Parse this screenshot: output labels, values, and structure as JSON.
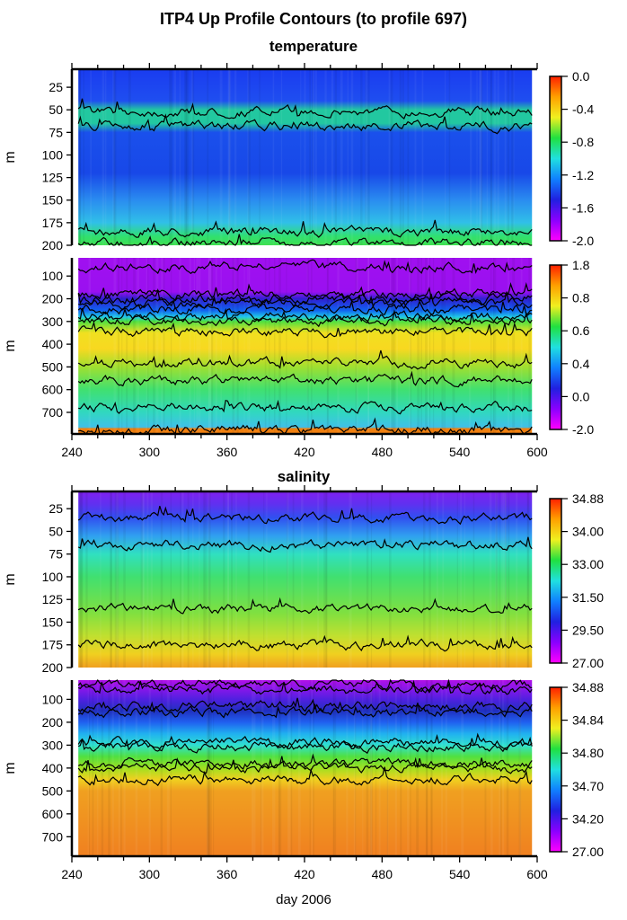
{
  "chart_data": [
    {
      "type": "heatmap",
      "title": "ITP4 Up Profile Contours (to profile 697)",
      "subtitle": "temperature",
      "ylabel": "m",
      "xlim": [
        240,
        600
      ],
      "ylim": [
        5,
        200
      ],
      "x_ticks": [
        240,
        300,
        360,
        420,
        480,
        540,
        600
      ],
      "y_ticks": [
        25,
        50,
        75,
        100,
        125,
        150,
        175,
        200
      ],
      "colorbar_ticks": [
        "0.0",
        "-0.4",
        "-0.8",
        "-1.2",
        "-1.6",
        "-2.0"
      ],
      "colorbar_range": [
        -2.0,
        0.0
      ],
      "contour_depths_approx": [
        52,
        68,
        185,
        197
      ],
      "color_by_depth": [
        [
          5,
          "#1a3cf0"
        ],
        [
          40,
          "#1f4ef0"
        ],
        [
          50,
          "#22c8a0"
        ],
        [
          65,
          "#22c8a0"
        ],
        [
          75,
          "#1a50ec"
        ],
        [
          120,
          "#1848e8"
        ],
        [
          150,
          "#2a8cf0"
        ],
        [
          175,
          "#30c0e8"
        ],
        [
          190,
          "#30e070"
        ],
        [
          200,
          "#40e050"
        ]
      ]
    },
    {
      "type": "heatmap",
      "ylabel": "m",
      "xlim": [
        240,
        600
      ],
      "ylim": [
        20,
        795
      ],
      "x_ticks": [
        240,
        300,
        360,
        420,
        480,
        540,
        600
      ],
      "x_tick_labels": [
        "240",
        "300",
        "360",
        "420",
        "480",
        "540",
        "600"
      ],
      "y_ticks": [
        100,
        200,
        300,
        400,
        500,
        600,
        700
      ],
      "colorbar_ticks": [
        "1.8",
        "0.8",
        "0.6",
        "0.4",
        "0.0",
        "-2.0"
      ],
      "colorbar_range": [
        -2.0,
        1.8
      ],
      "contour_depths_approx": [
        60,
        180,
        200,
        220,
        245,
        280,
        295,
        345,
        485,
        560,
        680,
        775
      ],
      "color_by_depth": [
        [
          20,
          "#a010f0"
        ],
        [
          170,
          "#9a10f0"
        ],
        [
          200,
          "#3020d0"
        ],
        [
          250,
          "#1060f0"
        ],
        [
          280,
          "#20c8e8"
        ],
        [
          300,
          "#50e040"
        ],
        [
          350,
          "#f0e020"
        ],
        [
          420,
          "#f8d820"
        ],
        [
          500,
          "#a0e030"
        ],
        [
          600,
          "#40e070"
        ],
        [
          700,
          "#30d8c0"
        ],
        [
          765,
          "#40c0e8"
        ],
        [
          772,
          "#f08010"
        ],
        [
          795,
          "#f08010"
        ]
      ]
    },
    {
      "type": "heatmap",
      "subtitle": "salinity",
      "ylabel": "m",
      "xlim": [
        240,
        600
      ],
      "ylim": [
        6,
        200
      ],
      "x_ticks": [
        240,
        300,
        360,
        420,
        480,
        540,
        600
      ],
      "y_ticks": [
        25,
        50,
        75,
        100,
        125,
        150,
        175,
        200
      ],
      "colorbar_ticks": [
        "34.88",
        "34.00",
        "33.00",
        "31.50",
        "29.50",
        "27.00"
      ],
      "colorbar_range": [
        27.0,
        34.88
      ],
      "contour_depths_approx": [
        35,
        65,
        135,
        175
      ],
      "color_by_depth": [
        [
          6,
          "#8020f0"
        ],
        [
          20,
          "#6030f0"
        ],
        [
          35,
          "#3050f0"
        ],
        [
          55,
          "#30a0f0"
        ],
        [
          75,
          "#30e0c0"
        ],
        [
          100,
          "#40e070"
        ],
        [
          140,
          "#80e040"
        ],
        [
          165,
          "#c0e030"
        ],
        [
          185,
          "#f0d020"
        ],
        [
          200,
          "#f0a020"
        ]
      ]
    },
    {
      "type": "heatmap",
      "ylabel": "m",
      "xlabel": "day 2006",
      "xlim": [
        240,
        600
      ],
      "ylim": [
        16,
        785
      ],
      "x_ticks": [
        240,
        300,
        360,
        420,
        480,
        540,
        600
      ],
      "x_tick_labels": [
        "240",
        "300",
        "360",
        "420",
        "480",
        "540",
        "600"
      ],
      "y_ticks": [
        100,
        200,
        300,
        400,
        500,
        600,
        700
      ],
      "colorbar_ticks": [
        "34.88",
        "34.84",
        "34.80",
        "34.70",
        "34.20",
        "27.00"
      ],
      "colorbar_range": [
        27.0,
        34.88
      ],
      "contour_depths_approx": [
        35,
        60,
        130,
        155,
        290,
        305,
        380,
        400,
        450
      ],
      "color_by_depth": [
        [
          16,
          "#b010e8"
        ],
        [
          60,
          "#8018e8"
        ],
        [
          100,
          "#5020e0"
        ],
        [
          150,
          "#2030c0"
        ],
        [
          200,
          "#2060f0"
        ],
        [
          250,
          "#20b0f0"
        ],
        [
          300,
          "#30e0d0"
        ],
        [
          350,
          "#50e040"
        ],
        [
          400,
          "#a0e020"
        ],
        [
          450,
          "#f0d020"
        ],
        [
          500,
          "#f0a020"
        ],
        [
          785,
          "#f08020"
        ]
      ]
    }
  ],
  "colorbar_colors": [
    "#ff00ff",
    "#8a00ff",
    "#2020e0",
    "#1080ff",
    "#20e0e0",
    "#20e040",
    "#f0f020",
    "#ffa000",
    "#ff2000"
  ]
}
